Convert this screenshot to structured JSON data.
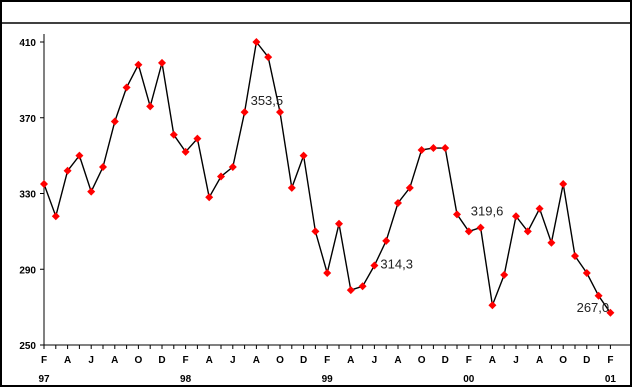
{
  "chart_data": {
    "type": "line",
    "title": "",
    "xlabel": "",
    "ylabel": "",
    "ylim": [
      250,
      420
    ],
    "yticks": [
      250,
      290,
      330,
      370,
      410
    ],
    "grid": false,
    "series_color": "#000000",
    "marker_color": "#ff0000",
    "x_month_labels": [
      "F",
      "A",
      "J",
      "A",
      "O",
      "D",
      "F",
      "A",
      "J",
      "A",
      "O",
      "D",
      "F",
      "A",
      "J",
      "A",
      "O",
      "D",
      "F",
      "A",
      "J",
      "A",
      "O",
      "D",
      "F"
    ],
    "year_labels": [
      {
        "label": "97",
        "index": 0
      },
      {
        "label": "98",
        "index": 12
      },
      {
        "label": "99",
        "index": 24
      },
      {
        "label": "00",
        "index": 36
      },
      {
        "label": "01",
        "index": 48
      }
    ],
    "series": [
      {
        "values": [
          335,
          318,
          342,
          350,
          331,
          344,
          368,
          386,
          398,
          376,
          399,
          361,
          352,
          359,
          328,
          339,
          344,
          373,
          410,
          402,
          373,
          333,
          350,
          310,
          288,
          314,
          279,
          281,
          292,
          305,
          325,
          333,
          353,
          354,
          354,
          319,
          310,
          312,
          271,
          287,
          318,
          310,
          322,
          304,
          335,
          297,
          288,
          276,
          267
        ]
      }
    ],
    "annotations": [
      {
        "text": "353,5",
        "index": 17
      },
      {
        "text": "314,3",
        "index": 28
      },
      {
        "text": "319,6",
        "index": 36
      },
      {
        "text": "267,0",
        "index": 47
      }
    ]
  }
}
